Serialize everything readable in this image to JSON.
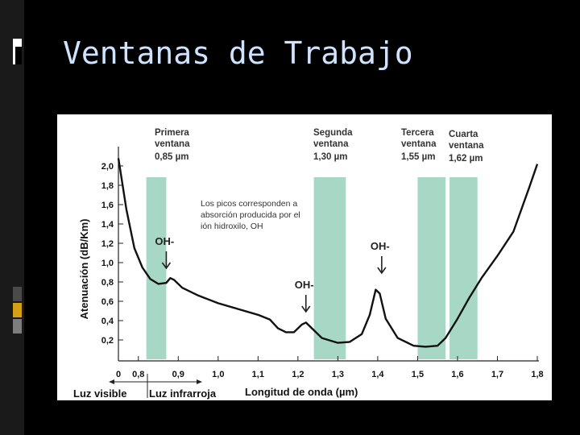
{
  "slide": {
    "title": "Ventanas de Trabajo",
    "accent_colors": [
      "#ffffff",
      "#3a3a3a",
      "#d4a017",
      "#7d7d7d"
    ]
  },
  "chart_data": {
    "type": "line",
    "ylabel": "Atenuación (dB/Km)",
    "xlabel": "Longitud de onda (µm)",
    "y_ticks": [
      "2,0",
      "1,8",
      "1,6",
      "1,4",
      "1,2",
      "1,0",
      "0,8",
      "0,6",
      "0,4",
      "0,2"
    ],
    "y_values": [
      2.0,
      1.8,
      1.6,
      1.4,
      1.2,
      1.0,
      0.8,
      0.6,
      0.4,
      0.2
    ],
    "x_ticks": [
      "0",
      "0,8",
      "0,9",
      "1,0",
      "1,1",
      "1,2",
      "1,3",
      "1,4",
      "1,5",
      "1,6",
      "1,7",
      "1,8"
    ],
    "xlim": [
      0.75,
      1.8
    ],
    "ylim": [
      0,
      2.2
    ],
    "series": [
      {
        "x": [
          0.75,
          0.77,
          0.79,
          0.81,
          0.83,
          0.85,
          0.87,
          0.88,
          0.89,
          0.91,
          0.95,
          1.0,
          1.05,
          1.1,
          1.13,
          1.15,
          1.17,
          1.19,
          1.21,
          1.22,
          1.24,
          1.26,
          1.3,
          1.33,
          1.36,
          1.38,
          1.395,
          1.405,
          1.42,
          1.45,
          1.49,
          1.52,
          1.55,
          1.57,
          1.6,
          1.63,
          1.66,
          1.7,
          1.74,
          1.78,
          1.8
        ],
        "y": [
          2.08,
          1.55,
          1.15,
          0.95,
          0.83,
          0.78,
          0.79,
          0.84,
          0.82,
          0.74,
          0.66,
          0.58,
          0.52,
          0.46,
          0.41,
          0.32,
          0.28,
          0.28,
          0.36,
          0.38,
          0.3,
          0.22,
          0.17,
          0.18,
          0.26,
          0.46,
          0.72,
          0.68,
          0.42,
          0.22,
          0.14,
          0.13,
          0.14,
          0.22,
          0.42,
          0.64,
          0.84,
          1.07,
          1.32,
          1.78,
          2.02
        ]
      }
    ],
    "windows": [
      {
        "label": "Primera ventana",
        "wavelength": "0,85 µm",
        "from": 0.82,
        "to": 0.87
      },
      {
        "label": "Segunda ventana",
        "wavelength": "1,30 µm",
        "from": 1.24,
        "to": 1.32
      },
      {
        "label": "Tercera ventana",
        "wavelength": "1,55 µm",
        "from": 1.5,
        "to": 1.57
      },
      {
        "label": "Cuarta ventana",
        "wavelength": "1,62 µm",
        "from": 1.58,
        "to": 1.65
      }
    ],
    "window_color": "#a6d8c5",
    "annotations": {
      "peaks_note": [
        "Los picos corresponden a",
        "absorción producida por el",
        "ión hidroxilo, OH"
      ],
      "oh_label": "OH-",
      "oh_markers": [
        {
          "x": 0.87,
          "y": 0.9
        },
        {
          "x": 1.22,
          "y": 0.45
        },
        {
          "x": 1.41,
          "y": 0.85
        }
      ]
    },
    "regions": {
      "visible": "Luz visible",
      "infrared": "Luz infrarroja"
    },
    "grid": false
  }
}
